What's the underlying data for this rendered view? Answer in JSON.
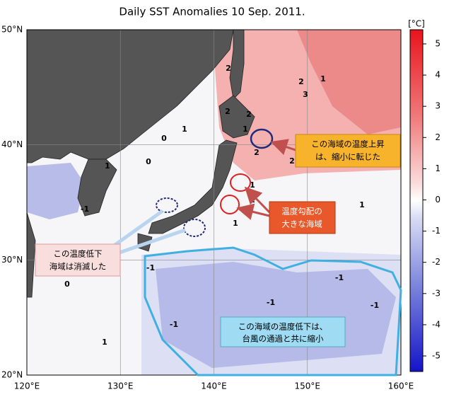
{
  "title": "Daily SST Anomalies 10 Sep. 2011.",
  "map": {
    "lon_ticks": [
      {
        "value": 120,
        "label": "120°E"
      },
      {
        "value": 130,
        "label": "130°E"
      },
      {
        "value": 140,
        "label": "140°E"
      },
      {
        "value": 150,
        "label": "150°E"
      },
      {
        "value": 160,
        "label": "160°E"
      }
    ],
    "lat_ticks": [
      {
        "value": 50,
        "label": "50°N"
      },
      {
        "value": 40,
        "label": "40°N"
      },
      {
        "value": 30,
        "label": "30°N"
      },
      {
        "value": 20,
        "label": "20°N"
      }
    ],
    "contour_labels": [
      "2",
      "2",
      "2",
      "1",
      "3",
      "2",
      "1",
      "2",
      "1",
      "0",
      "1",
      "0",
      "-1",
      "1",
      "1",
      "1",
      "2",
      "-1",
      "-1",
      "-1",
      "0",
      "-1",
      "1",
      "1",
      "-1"
    ]
  },
  "colorbar": {
    "unit": "[°C]",
    "ticks": [
      5,
      4,
      3,
      2,
      1,
      0,
      -1,
      -2,
      -3,
      -4,
      -5
    ]
  },
  "annotations": [
    {
      "lines": [
        "この海域の温度上昇",
        "は、縮小に転じた"
      ]
    },
    {
      "lines": [
        "温度勾配の",
        "大きな海域"
      ]
    },
    {
      "lines": [
        "この温度低下",
        "海域は消滅した"
      ]
    },
    {
      "lines": [
        "この海域の温度低下は、",
        "台風の通過と共に縮小"
      ]
    }
  ]
}
